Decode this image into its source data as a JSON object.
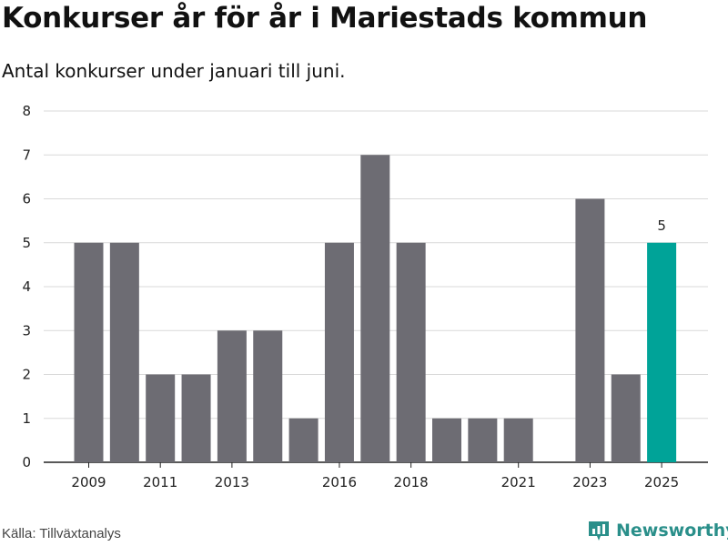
{
  "header": {
    "title": "Konkurser år för år i Mariestads kommun",
    "subtitle": "Antal konkurser under januari till juni."
  },
  "footer": {
    "source": "Källa: Tillväxtanalys",
    "brand": "Newsworthy",
    "brand_icon": "bar-chart-logo-icon"
  },
  "colors": {
    "bar": "#6d6c73",
    "highlight": "#00a398",
    "grid": "#d9d9d9",
    "brand": "#2a8f8a"
  },
  "chart_data": {
    "type": "bar",
    "categories": [
      "2009",
      "2010",
      "2011",
      "2012",
      "2013",
      "2014",
      "2015",
      "2016",
      "2017",
      "2018",
      "2019",
      "2020",
      "2021",
      "2022",
      "2023",
      "2024",
      "2025"
    ],
    "values": [
      5,
      5,
      2,
      2,
      3,
      3,
      1,
      5,
      7,
      5,
      1,
      1,
      1,
      0,
      6,
      2,
      5
    ],
    "x_tick_labels": [
      "2009",
      "2011",
      "2013",
      "2016",
      "2018",
      "2021",
      "2023",
      "2025"
    ],
    "y_ticks": [
      0,
      1,
      2,
      3,
      4,
      5,
      6,
      7,
      8
    ],
    "ylim": [
      0,
      8
    ],
    "grid": true,
    "highlight_category": "2025",
    "data_labels": [
      {
        "category": "2025",
        "text": "5"
      }
    ],
    "xlabel": "",
    "ylabel": ""
  }
}
